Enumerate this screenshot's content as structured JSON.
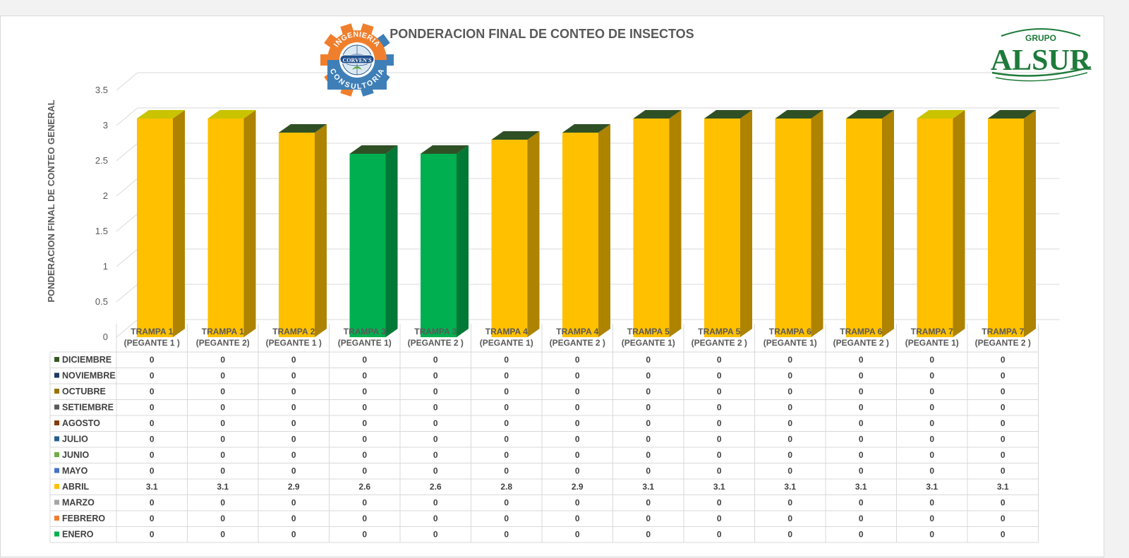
{
  "chart_data": {
    "type": "bar",
    "title": "PONDERACION FINAL DE CONTEO DE INSECTOS",
    "ylabel": "PONDERACION FINAL DE CONTEO GENERAL",
    "xlabel": "",
    "ylim": [
      0,
      3.5
    ],
    "yticks": [
      "0",
      "0.5",
      "1",
      "1.5",
      "2",
      "2.5",
      "3",
      "3.5"
    ],
    "grid": true,
    "legend": "data-table",
    "categories": [
      [
        "TRAMPA 1",
        "(PEGANTE 1 )"
      ],
      [
        "TRAMPA 1",
        "(PEGANTE 2)"
      ],
      [
        "TRAMPA 2",
        "(PEGANTE 1 )"
      ],
      [
        "TRAMPA 3",
        "(PEGANTE 1)"
      ],
      [
        "TRAMPA 3",
        "(PEGANTE 2 )"
      ],
      [
        "TRAMPA 4",
        "(PEGANTE 1)"
      ],
      [
        "TRAMPA 4",
        "(PEGANTE 2 )"
      ],
      [
        "TRAMPA 5",
        "(PEGANTE 1)"
      ],
      [
        "TRAMPA 5",
        "(PEGANTE 2 )"
      ],
      [
        "TRAMPA 6",
        "(PEGANTE 1)"
      ],
      [
        "TRAMPA 6",
        "(PEGANTE 2 )"
      ],
      [
        "TRAMPA 7",
        "(PEGANTE 1)"
      ],
      [
        "TRAMPA 7",
        "(PEGANTE 2 )"
      ]
    ],
    "bar_colors": [
      "#ffc000",
      "#ffc000",
      "#ffc000",
      "#00b050",
      "#00b050",
      "#ffc000",
      "#ffc000",
      "#ffc000",
      "#ffc000",
      "#ffc000",
      "#ffc000",
      "#ffc000",
      "#ffc000"
    ],
    "top_colors": [
      "#c9c300",
      "#c9c300",
      "#2f5025",
      "#2f5025",
      "#2f5025",
      "#2f5025",
      "#2f5025",
      "#2f5025",
      "#2f5025",
      "#2f5025",
      "#2f5025",
      "#c9c300",
      "#2f5025"
    ],
    "series": [
      {
        "name": "DICIEMBRE",
        "color": "#375623",
        "values": [
          "0",
          "0",
          "0",
          "0",
          "0",
          "0",
          "0",
          "0",
          "0",
          "0",
          "0",
          "0",
          "0"
        ]
      },
      {
        "name": "NOVIEMBRE",
        "color": "#1f3864",
        "values": [
          "0",
          "0",
          "0",
          "0",
          "0",
          "0",
          "0",
          "0",
          "0",
          "0",
          "0",
          "0",
          "0"
        ]
      },
      {
        "name": "OCTUBRE",
        "color": "#997300",
        "values": [
          "0",
          "0",
          "0",
          "0",
          "0",
          "0",
          "0",
          "0",
          "0",
          "0",
          "0",
          "0",
          "0"
        ]
      },
      {
        "name": "SETIEMBRE",
        "color": "#595959",
        "values": [
          "0",
          "0",
          "0",
          "0",
          "0",
          "0",
          "0",
          "0",
          "0",
          "0",
          "0",
          "0",
          "0"
        ]
      },
      {
        "name": "AGOSTO",
        "color": "#843c0c",
        "values": [
          "0",
          "0",
          "0",
          "0",
          "0",
          "0",
          "0",
          "0",
          "0",
          "0",
          "0",
          "0",
          "0"
        ]
      },
      {
        "name": "JULIO",
        "color": "#255e91",
        "values": [
          "0",
          "0",
          "0",
          "0",
          "0",
          "0",
          "0",
          "0",
          "0",
          "0",
          "0",
          "0",
          "0"
        ]
      },
      {
        "name": "JUNIO",
        "color": "#70ad47",
        "values": [
          "0",
          "0",
          "0",
          "0",
          "0",
          "0",
          "0",
          "0",
          "0",
          "0",
          "0",
          "0",
          "0"
        ]
      },
      {
        "name": "MAYO",
        "color": "#4472c4",
        "values": [
          "0",
          "0",
          "0",
          "0",
          "0",
          "0",
          "0",
          "0",
          "0",
          "0",
          "0",
          "0",
          "0"
        ]
      },
      {
        "name": "ABRIL",
        "color": "#ffc000",
        "values": [
          "3.1",
          "3.1",
          "2.9",
          "2.6",
          "2.6",
          "2.8",
          "2.9",
          "3.1",
          "3.1",
          "3.1",
          "3.1",
          "3.1",
          "3.1"
        ]
      },
      {
        "name": "MARZO",
        "color": "#a5a5a5",
        "values": [
          "0",
          "0",
          "0",
          "0",
          "0",
          "0",
          "0",
          "0",
          "0",
          "0",
          "0",
          "0",
          "0"
        ]
      },
      {
        "name": "FEBRERO",
        "color": "#ed7d31",
        "values": [
          "0",
          "0",
          "0",
          "0",
          "0",
          "0",
          "0",
          "0",
          "0",
          "0",
          "0",
          "0",
          "0"
        ]
      },
      {
        "name": "ENERO",
        "color": "#00b050",
        "values": [
          "0",
          "0",
          "0",
          "0",
          "0",
          "0",
          "0",
          "0",
          "0",
          "0",
          "0",
          "0",
          "0"
        ]
      }
    ]
  },
  "logo_consultoria": {
    "top_text": "INGENIERIA",
    "center_text": "CORVEN'S",
    "bottom_text": "CONSULTORIA",
    "gear_top_color": "#f07f2d",
    "gear_bottom_color": "#3f7fb8"
  },
  "logo_alsur": {
    "small_text": "GRUPO",
    "big_text": "ALSUR",
    "color": "#1e7a3a"
  }
}
